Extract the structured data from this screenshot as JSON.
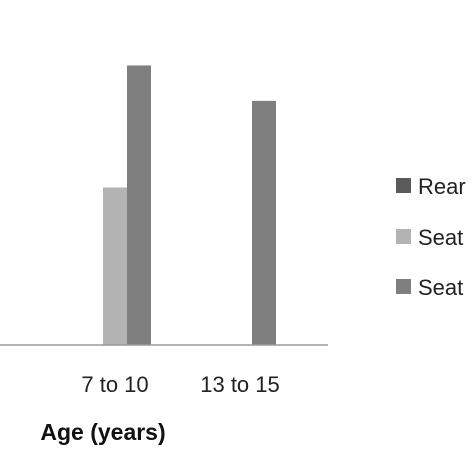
{
  "chart_data": {
    "type": "bar",
    "categories": [
      "",
      "7 to 10",
      "13 to 15"
    ],
    "series": [
      {
        "name": "Rear",
        "color": "#5a5a5a",
        "values": [
          0,
          0,
          0
        ]
      },
      {
        "name": "Seat",
        "color": "#b3b3b3",
        "values": [
          0,
          4,
          0
        ]
      },
      {
        "name": "Seat",
        "color": "#7f7f7f",
        "values": [
          0,
          7.1,
          6.2
        ]
      }
    ],
    "title": "",
    "xlabel": "Age (years)",
    "ylabel": "",
    "ylim": [
      0,
      8
    ],
    "grid": false,
    "legend_position": "right"
  }
}
